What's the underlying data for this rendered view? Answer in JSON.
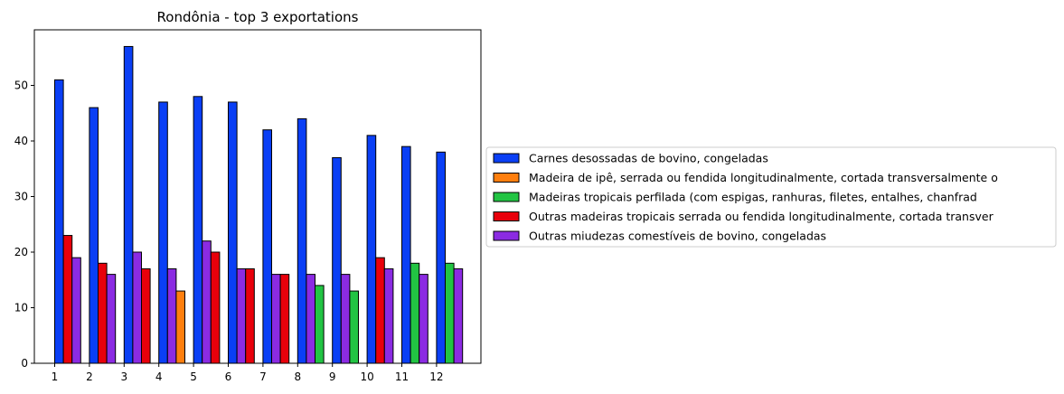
{
  "chart_data": {
    "type": "bar",
    "title": "Rondônia - top 3 exportations",
    "xlabel": "",
    "ylabel": "",
    "categories": [
      "1",
      "2",
      "3",
      "4",
      "5",
      "6",
      "7",
      "8",
      "9",
      "10",
      "11",
      "12"
    ],
    "ylim": [
      0,
      60
    ],
    "yticks": [
      0,
      10,
      20,
      30,
      40,
      50
    ],
    "grid": false,
    "legend_position": "right",
    "series": [
      {
        "name": "Carnes desossadas de bovino, congeladas",
        "color": "#0a3ff5",
        "values": [
          51,
          46,
          57,
          47,
          48,
          47,
          42,
          44,
          37,
          41,
          39,
          38
        ]
      },
      {
        "name": "Madeira de ipê, serrada ou fendida longitudinalmente, cortada transversalmente o",
        "color": "#ff7f0e",
        "values": [
          null,
          null,
          null,
          13,
          null,
          null,
          null,
          null,
          null,
          null,
          null,
          null
        ]
      },
      {
        "name": "Madeiras tropicais perfilada (com espigas, ranhuras, filetes, entalhes, chanfrad",
        "color": "#22c443",
        "values": [
          null,
          null,
          null,
          null,
          null,
          null,
          null,
          14,
          13,
          null,
          18,
          18
        ]
      },
      {
        "name": "Outras madeiras tropicais serrada ou fendida longitudinalmente, cortada transver",
        "color": "#e8000b",
        "values": [
          23,
          18,
          17,
          null,
          20,
          17,
          16,
          null,
          null,
          19,
          null,
          null
        ]
      },
      {
        "name": "Outras miudezas comestíveis de bovino, congeladas",
        "color": "#8b2be2",
        "values": [
          19,
          16,
          20,
          17,
          22,
          17,
          16,
          16,
          16,
          17,
          16,
          17
        ]
      }
    ],
    "groups": [
      [
        "Carnes desossadas de bovino, congeladas",
        "Outras madeiras tropicais serrada ou fendida longitudinalmente, cortada transver",
        "Outras miudezas comestíveis de bovino, congeladas"
      ],
      [
        "Carnes desossadas de bovino, congeladas",
        "Outras madeiras tropicais serrada ou fendida longitudinalmente, cortada transver",
        "Outras miudezas comestíveis de bovino, congeladas"
      ],
      [
        "Carnes desossadas de bovino, congeladas",
        "Outras miudezas comestíveis de bovino, congeladas",
        "Outras madeiras tropicais serrada ou fendida longitudinalmente, cortada transver"
      ],
      [
        "Carnes desossadas de bovino, congeladas",
        "Outras miudezas comestíveis de bovino, congeladas",
        "Madeira de ipê, serrada ou fendida longitudinalmente, cortada transversalmente o"
      ],
      [
        "Carnes desossadas de bovino, congeladas",
        "Outras miudezas comestíveis de bovino, congeladas",
        "Outras madeiras tropicais serrada ou fendida longitudinalmente, cortada transver"
      ],
      [
        "Carnes desossadas de bovino, congeladas",
        "Outras miudezas comestíveis de bovino, congeladas",
        "Outras madeiras tropicais serrada ou fendida longitudinalmente, cortada transver"
      ],
      [
        "Carnes desossadas de bovino, congeladas",
        "Outras miudezas comestíveis de bovino, congeladas",
        "Outras madeiras tropicais serrada ou fendida longitudinalmente, cortada transver"
      ],
      [
        "Carnes desossadas de bovino, congeladas",
        "Outras miudezas comestíveis de bovino, congeladas",
        "Madeiras tropicais perfilada (com espigas, ranhuras, filetes, entalhes, chanfrad"
      ],
      [
        "Carnes desossadas de bovino, congeladas",
        "Outras miudezas comestíveis de bovino, congeladas",
        "Madeiras tropicais perfilada (com espigas, ranhuras, filetes, entalhes, chanfrad"
      ],
      [
        "Carnes desossadas de bovino, congeladas",
        "Outras madeiras tropicais serrada ou fendida longitudinalmente, cortada transver",
        "Outras miudezas comestíveis de bovino, congeladas"
      ],
      [
        "Carnes desossadas de bovino, congeladas",
        "Madeiras tropicais perfilada (com espigas, ranhuras, filetes, entalhes, chanfrad",
        "Outras miudezas comestíveis de bovino, congeladas"
      ],
      [
        "Carnes desossadas de bovino, congeladas",
        "Madeiras tropicais perfilada (com espigas, ranhuras, filetes, entalhes, chanfrad",
        "Outras miudezas comestíveis de bovino, congeladas"
      ]
    ]
  }
}
